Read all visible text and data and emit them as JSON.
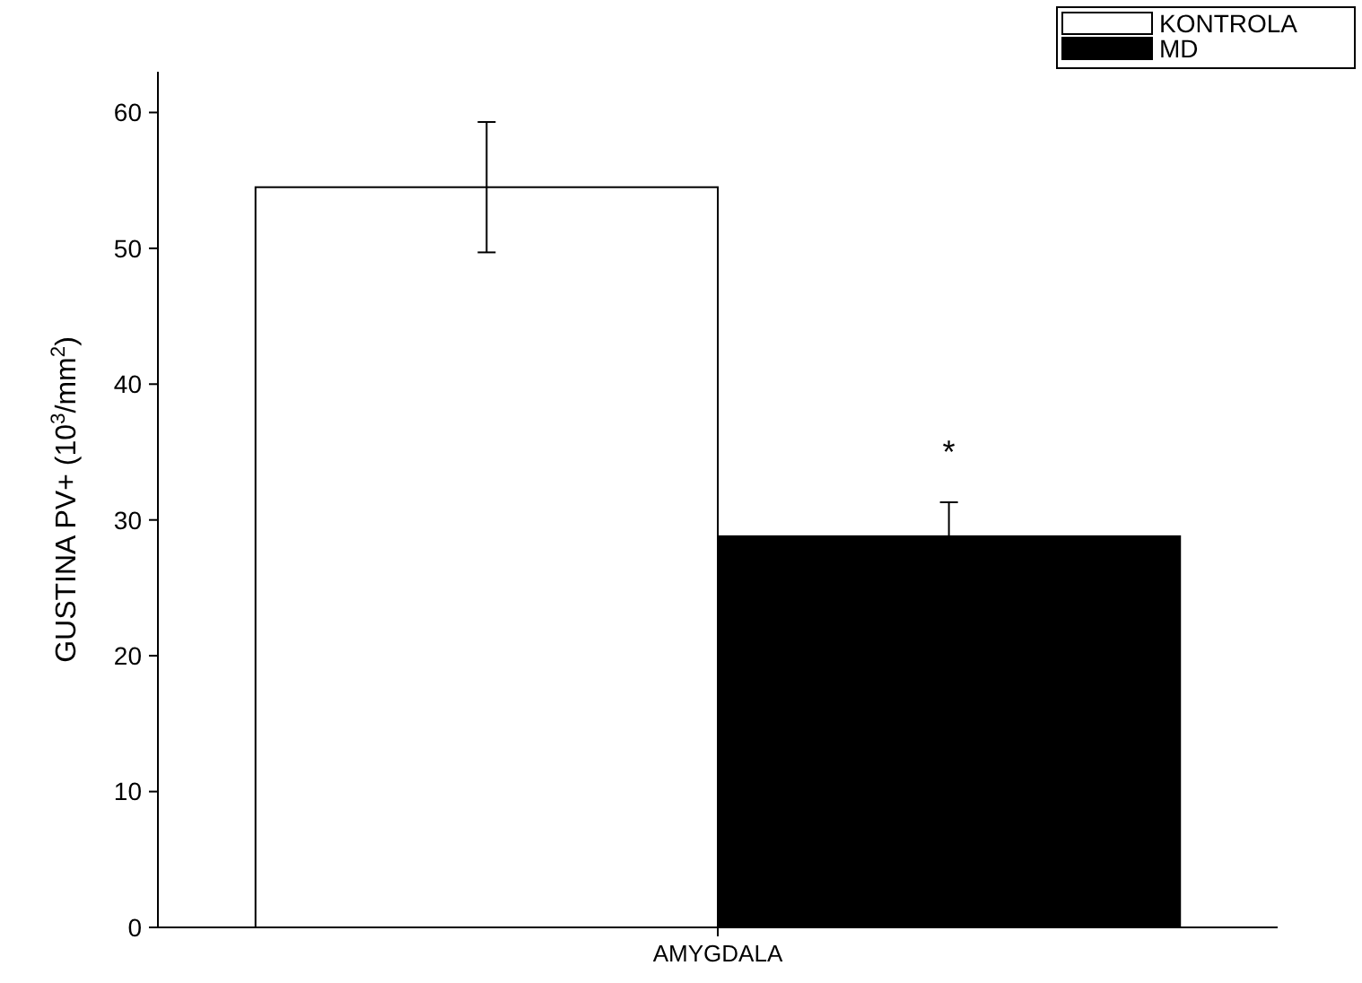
{
  "chart_data": {
    "type": "bar",
    "ylabel": "GUSTINA PV+ (10$^{3}$/mm$^{2}$)",
    "categories": [
      "AMYGDALA"
    ],
    "series": [
      {
        "name": "KONTROLA",
        "color": "#ffffff",
        "values": [
          54.5
        ],
        "errors": [
          4.8
        ]
      },
      {
        "name": "MD",
        "color": "#000000",
        "values": [
          28.8
        ],
        "errors": [
          2.5
        ]
      }
    ],
    "ylim": [
      0,
      63
    ],
    "yticks": [
      0,
      10,
      20,
      30,
      40,
      50,
      60
    ],
    "grid": false,
    "legend": "top right",
    "annotations": [
      "*"
    ]
  }
}
